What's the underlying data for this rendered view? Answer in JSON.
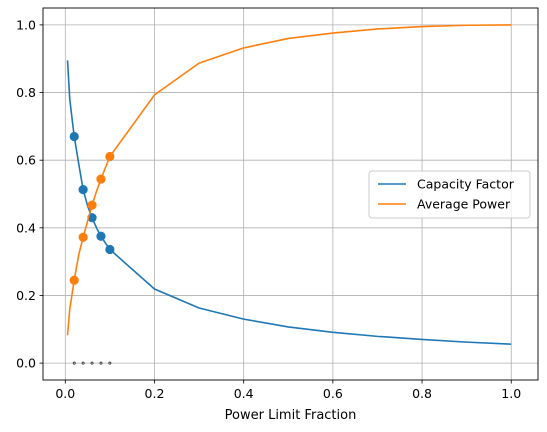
{
  "chart_data": {
    "type": "line",
    "title": "",
    "xlabel": "Power Limit Fraction",
    "ylabel": "",
    "xlim": [
      -0.05,
      1.06
    ],
    "ylim": [
      -0.05,
      1.05
    ],
    "grid": true,
    "legend_position": "center-right",
    "x_ticks": [
      {
        "value": 0.0,
        "label": "0.0"
      },
      {
        "value": 0.2,
        "label": "0.2"
      },
      {
        "value": 0.4,
        "label": "0.4"
      },
      {
        "value": 0.6,
        "label": "0.6"
      },
      {
        "value": 0.8,
        "label": "0.8"
      },
      {
        "value": 1.0,
        "label": "1.0"
      }
    ],
    "y_ticks": [
      {
        "value": 0.0,
        "label": "0.0"
      },
      {
        "value": 0.2,
        "label": "0.2"
      },
      {
        "value": 0.4,
        "label": "0.4"
      },
      {
        "value": 0.6,
        "label": "0.6"
      },
      {
        "value": 0.8,
        "label": "0.8"
      },
      {
        "value": 1.0,
        "label": "1.0"
      }
    ],
    "series": [
      {
        "name": "Capacity Factor",
        "color": "#1f77b4",
        "x": [
          0.005,
          0.01,
          0.02,
          0.03,
          0.04,
          0.05,
          0.06,
          0.07,
          0.08,
          0.09,
          0.1,
          0.2,
          0.3,
          0.4,
          0.5,
          0.6,
          0.7,
          0.8,
          0.9,
          1.0
        ],
        "y": [
          0.895,
          0.78,
          0.67,
          0.59,
          0.513,
          0.465,
          0.43,
          0.4,
          0.375,
          0.355,
          0.336,
          0.219,
          0.163,
          0.13,
          0.107,
          0.091,
          0.079,
          0.07,
          0.062,
          0.056
        ],
        "markers": {
          "x": [
            0.02,
            0.04,
            0.06,
            0.08,
            0.1
          ],
          "y": [
            0.67,
            0.513,
            0.43,
            0.375,
            0.336
          ]
        }
      },
      {
        "name": "Average Power",
        "color": "#ff7f0e",
        "x": [
          0.005,
          0.01,
          0.02,
          0.03,
          0.04,
          0.05,
          0.06,
          0.07,
          0.08,
          0.09,
          0.1,
          0.2,
          0.3,
          0.4,
          0.5,
          0.6,
          0.7,
          0.8,
          0.9,
          1.0
        ],
        "y": [
          0.082,
          0.16,
          0.245,
          0.32,
          0.372,
          0.42,
          0.467,
          0.508,
          0.544,
          0.578,
          0.611,
          0.793,
          0.887,
          0.932,
          0.96,
          0.976,
          0.988,
          0.995,
          0.999,
          1.0
        ],
        "markers": {
          "x": [
            0.02,
            0.04,
            0.06,
            0.08,
            0.1
          ],
          "y": [
            0.245,
            0.372,
            0.467,
            0.544,
            0.611
          ]
        }
      }
    ],
    "extra_points": {
      "color": "#222222",
      "x": [
        0.02,
        0.04,
        0.06,
        0.08,
        0.1
      ],
      "y": [
        0.0,
        0.0,
        0.0,
        0.0,
        0.0
      ]
    }
  }
}
